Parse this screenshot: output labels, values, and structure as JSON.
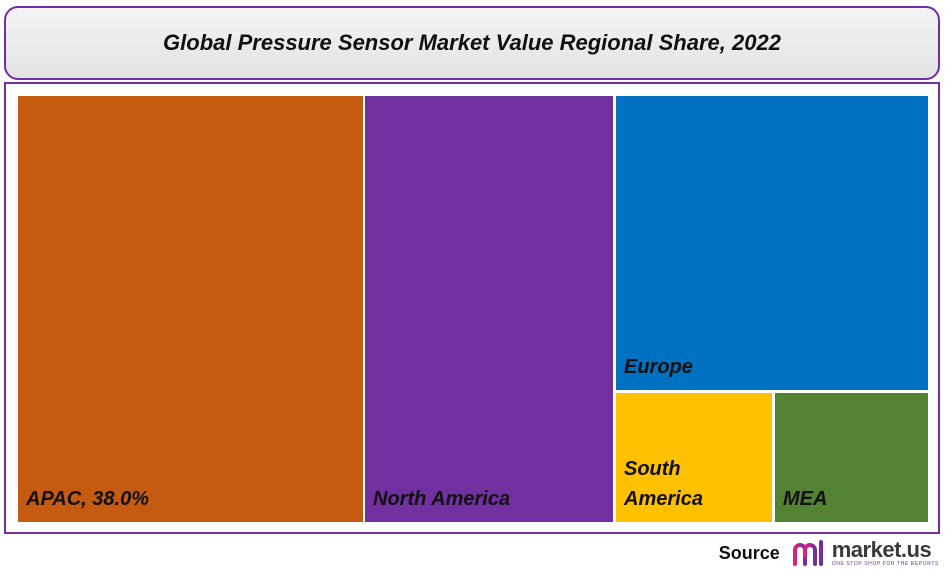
{
  "chart_data": {
    "type": "treemap",
    "title": "Global Pressure Sensor Market Value Regional Share, 2022",
    "tiles": [
      {
        "id": "apac",
        "label": "APAC, 38.0%",
        "color": "#c55a11"
      },
      {
        "id": "north-america",
        "label": "North America",
        "color": "#7030a0"
      },
      {
        "id": "europe",
        "label": "Europe",
        "color": "#0070c0"
      },
      {
        "id": "south-america",
        "label": "South\nAmerica",
        "color": "#ffc000"
      },
      {
        "id": "mea",
        "label": "MEA",
        "color": "#548235"
      }
    ]
  },
  "footer": {
    "source_label": "Source",
    "brand_name": "market.us",
    "brand_tagline": "ONE STOP SHOP FOR THE REPORTS",
    "brand_icon": "market-us-logo-icon"
  }
}
